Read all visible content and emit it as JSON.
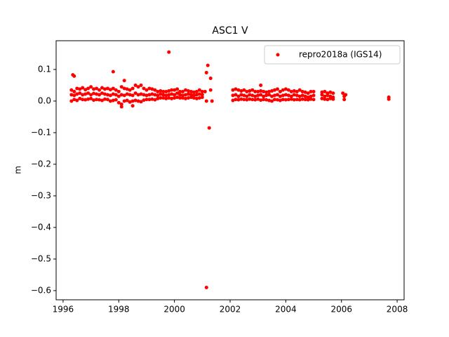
{
  "chart_data": {
    "type": "scatter",
    "title": "ASC1 V",
    "y_label": "m",
    "xlim": [
      1995.75,
      2008.25
    ],
    "xticks": [
      1996,
      1998,
      2000,
      2002,
      2004,
      2006,
      2008
    ],
    "ylim": [
      -0.629,
      0.191
    ],
    "yticks": [
      {
        "value": -0.6,
        "label": "−0.6"
      },
      {
        "value": -0.5,
        "label": "−0.5"
      },
      {
        "value": -0.4,
        "label": "−0.4"
      },
      {
        "value": -0.3,
        "label": "−0.3"
      },
      {
        "value": -0.2,
        "label": "−0.2"
      },
      {
        "value": -0.1,
        "label": "−0.1"
      },
      {
        "value": 0,
        "label": "0.0"
      },
      0.1
    ],
    "legend": "upper right",
    "series": [
      {
        "name": "repro2018a (IGS14)",
        "color": "#ff0000",
        "x": [
          1996.3,
          1996.4,
          1996.5,
          1996.6,
          1996.7,
          1996.8,
          1996.9,
          1997.0,
          1997.1,
          1997.2,
          1997.3,
          1997.4,
          1997.5,
          1997.6,
          1997.7,
          1997.8,
          1997.9,
          1998.0,
          1998.1,
          1998.2,
          1998.3,
          1998.4,
          1998.5,
          1998.6,
          1998.7,
          1998.8,
          1998.9,
          1999.0,
          1999.1,
          1999.2,
          1999.3,
          1999.4,
          1999.5,
          1999.6,
          1999.7,
          1999.8,
          1999.9,
          2000.0,
          2000.1,
          2000.2,
          2000.3,
          2000.4,
          2000.5,
          2000.6,
          2000.7,
          2000.8,
          2000.9,
          2001.0,
          1996.3,
          1996.4,
          1996.5,
          1996.6,
          1996.7,
          1996.8,
          1996.9,
          1997.0,
          1997.1,
          1997.2,
          1997.3,
          1997.4,
          1997.5,
          1997.6,
          1997.7,
          1997.8,
          1997.9,
          1998.0,
          1998.1,
          1998.2,
          1998.3,
          1998.4,
          1998.5,
          1998.6,
          1998.7,
          1998.8,
          1998.9,
          1999.0,
          1999.1,
          1999.2,
          1999.3,
          1999.4,
          1999.5,
          1999.6,
          1999.7,
          1999.8,
          1999.9,
          2000.0,
          2000.1,
          2000.2,
          2000.3,
          2000.4,
          2000.5,
          2000.6,
          2000.7,
          2000.8,
          2000.9,
          2001.0,
          1996.3,
          1996.4,
          1996.5,
          1996.6,
          1996.7,
          1996.8,
          1996.9,
          1997.0,
          1997.1,
          1997.2,
          1997.3,
          1997.4,
          1997.5,
          1997.6,
          1997.7,
          1997.8,
          1997.9,
          1998.0,
          1998.1,
          1998.2,
          1998.3,
          1998.4,
          1998.5,
          1998.6,
          1998.7,
          1998.8,
          1998.9,
          1999.0,
          1999.1,
          1999.2,
          1999.3,
          1999.4,
          1999.5,
          1999.6,
          1999.7,
          1999.8,
          1999.9,
          2000.0,
          2000.1,
          2000.2,
          2000.3,
          2000.4,
          2000.5,
          2000.6,
          2000.7,
          2000.8,
          2000.9,
          2001.0,
          2001.1,
          2001.15,
          2001.3,
          2001.35,
          2002.1,
          2002.2,
          2002.3,
          2002.4,
          2002.5,
          2002.6,
          2002.7,
          2002.8,
          2002.9,
          2003.0,
          2003.1,
          2003.2,
          2003.3,
          2003.4,
          2003.5,
          2003.6,
          2003.7,
          2003.8,
          2003.9,
          2004.0,
          2004.1,
          2004.2,
          2004.3,
          2004.4,
          2004.5,
          2004.6,
          2004.7,
          2004.8,
          2004.9,
          2005.0,
          2005.3,
          2005.4,
          2005.5,
          2005.6,
          2005.7,
          2002.1,
          2002.2,
          2002.3,
          2002.4,
          2002.5,
          2002.6,
          2002.7,
          2002.8,
          2002.9,
          2003.0,
          2003.1,
          2003.2,
          2003.3,
          2003.4,
          2003.5,
          2003.6,
          2003.7,
          2003.8,
          2003.9,
          2004.0,
          2004.1,
          2004.2,
          2004.3,
          2004.4,
          2004.5,
          2004.6,
          2004.7,
          2004.8,
          2004.9,
          2005.0,
          2005.3,
          2005.4,
          2005.5,
          2005.6,
          2005.7,
          2002.1,
          2002.2,
          2002.3,
          2002.4,
          2002.5,
          2002.6,
          2002.7,
          2002.8,
          2002.9,
          2003.0,
          2003.1,
          2003.2,
          2003.3,
          2003.4,
          2003.5,
          2003.6,
          2003.7,
          2003.8,
          2003.9,
          2004.0,
          2004.1,
          2004.2,
          2004.3,
          2004.4,
          2004.5,
          2004.6,
          2004.7,
          2004.8,
          2004.9,
          2005.0,
          2005.3,
          2005.4,
          2005.5,
          2005.6,
          2005.7,
          2006.05,
          2006.1,
          2006.1,
          2006.15,
          2007.7,
          2007.7,
          1996.35,
          1996.4,
          1997.8,
          1998.2,
          1999.8,
          2001.15,
          2001.2,
          2001.3,
          2001.25,
          2001.15,
          2003.1,
          1998.1,
          1998.5
        ],
        "values": [
          0.035,
          0.03,
          0.04,
          0.038,
          0.042,
          0.036,
          0.04,
          0.045,
          0.038,
          0.04,
          0.035,
          0.042,
          0.038,
          0.04,
          0.036,
          0.04,
          0.035,
          0.03,
          0.045,
          0.04,
          0.038,
          0.035,
          0.04,
          0.05,
          0.045,
          0.05,
          0.04,
          0.035,
          0.04,
          0.038,
          0.035,
          0.03,
          0.032,
          0.03,
          0.03,
          0.032,
          0.035,
          0.035,
          0.038,
          0.03,
          0.03,
          0.035,
          0.032,
          0.03,
          0.028,
          0.03,
          0.035,
          0.03,
          0.0,
          0.005,
          0.002,
          0.008,
          0.005,
          0.004,
          0.006,
          0.008,
          0.003,
          0.005,
          0.004,
          0.002,
          0.006,
          0.005,
          0.0,
          0.002,
          0.004,
          -0.005,
          -0.01,
          0.0,
          0.002,
          -0.003,
          0.0,
          0.002,
          0.0,
          -0.002,
          0.003,
          0.005,
          0.005,
          0.006,
          0.004,
          0.008,
          0.01,
          0.01,
          0.008,
          0.01,
          0.008,
          0.01,
          0.012,
          0.01,
          0.01,
          0.008,
          0.01,
          0.012,
          0.01,
          0.008,
          0.01,
          0.012,
          0.02,
          0.018,
          0.022,
          0.025,
          0.02,
          0.022,
          0.025,
          0.02,
          0.024,
          0.022,
          0.02,
          0.025,
          0.022,
          0.02,
          0.018,
          0.022,
          0.02,
          0.015,
          0.02,
          0.018,
          0.022,
          0.02,
          0.018,
          0.025,
          0.02,
          0.022,
          0.02,
          0.018,
          0.02,
          0.022,
          0.02,
          0.018,
          0.022,
          0.02,
          0.018,
          0.02,
          0.022,
          0.02,
          0.025,
          0.02,
          0.018,
          0.02,
          0.022,
          0.02,
          0.018,
          0.02,
          0.022,
          0.02,
          0.03,
          0.0,
          0.035,
          0.0,
          0.035,
          0.038,
          0.035,
          0.032,
          0.035,
          0.03,
          0.032,
          0.035,
          0.03,
          0.03,
          0.032,
          0.03,
          0.028,
          0.03,
          0.032,
          0.035,
          0.038,
          0.03,
          0.035,
          0.038,
          0.035,
          0.03,
          0.032,
          0.03,
          0.035,
          0.03,
          0.028,
          0.025,
          0.03,
          0.03,
          0.028,
          0.03,
          0.025,
          0.028,
          0.025,
          0.002,
          0.005,
          0.004,
          0.006,
          0.005,
          0.004,
          0.006,
          0.005,
          0.004,
          0.006,
          0.003,
          0.005,
          0.004,
          0.002,
          0.0,
          0.005,
          0.004,
          0.002,
          0.005,
          0.004,
          0.005,
          0.006,
          0.004,
          0.005,
          0.004,
          0.006,
          0.005,
          0.004,
          0.006,
          0.005,
          0.008,
          0.006,
          0.005,
          0.008,
          0.006,
          0.018,
          0.02,
          0.015,
          0.02,
          0.018,
          0.015,
          0.02,
          0.018,
          0.015,
          0.018,
          0.02,
          0.015,
          0.018,
          0.02,
          0.015,
          0.018,
          0.02,
          0.015,
          0.018,
          0.02,
          0.018,
          0.015,
          0.02,
          0.018,
          0.015,
          0.018,
          0.015,
          0.012,
          0.015,
          0.018,
          0.02,
          0.015,
          0.018,
          0.015,
          0.012,
          0.025,
          0.005,
          0.015,
          0.02,
          0.012,
          0.006,
          0.083,
          0.079,
          0.093,
          0.065,
          0.155,
          0.09,
          0.113,
          0.072,
          -0.085,
          -0.59,
          0.05,
          -0.018,
          -0.015
        ]
      }
    ]
  }
}
